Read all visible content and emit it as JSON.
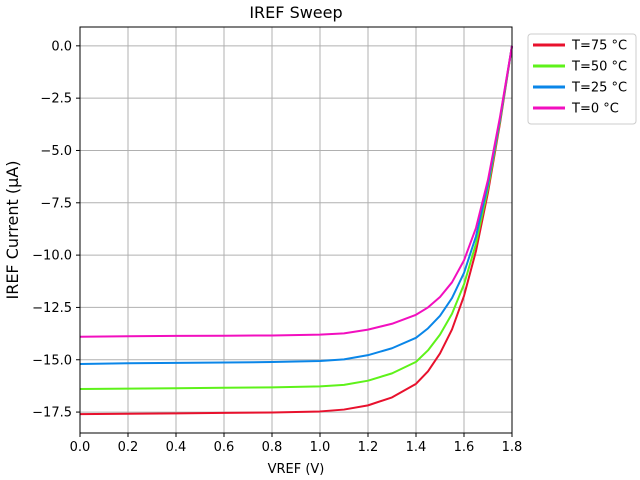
{
  "chart_data": {
    "type": "line",
    "title": "IREF Sweep",
    "xlabel": "VREF (V)",
    "ylabel": "IREF Current (µA)",
    "xlim": [
      0.0,
      1.8
    ],
    "ylim": [
      -18.5,
      0.9
    ],
    "xticks": [
      0.0,
      0.2,
      0.4,
      0.6,
      0.8,
      1.0,
      1.2,
      1.4,
      1.6,
      1.8
    ],
    "xtick_labels": [
      "0.0",
      "0.2",
      "0.4",
      "0.6",
      "0.8",
      "1.0",
      "1.2",
      "1.4",
      "1.6",
      "1.8"
    ],
    "yticks": [
      0.0,
      -2.5,
      -5.0,
      -7.5,
      -10.0,
      -12.5,
      -15.0,
      -17.5
    ],
    "ytick_labels": [
      "0.0",
      "−2.5",
      "−5.0",
      "−7.5",
      "−10.0",
      "−12.5",
      "−15.0",
      "−17.5"
    ],
    "grid": true,
    "legend_position": "outside-top-right",
    "x": [
      0.0,
      0.2,
      0.4,
      0.6,
      0.8,
      1.0,
      1.1,
      1.2,
      1.3,
      1.4,
      1.45,
      1.5,
      1.55,
      1.6,
      1.65,
      1.7,
      1.75,
      1.8
    ],
    "series": [
      {
        "name": "T=75 °C",
        "color": "#e8112d",
        "values": [
          -17.6,
          -17.58,
          -17.56,
          -17.54,
          -17.52,
          -17.47,
          -17.38,
          -17.18,
          -16.8,
          -16.15,
          -15.55,
          -14.7,
          -13.55,
          -11.95,
          -9.8,
          -7.0,
          -3.7,
          0.0
        ]
      },
      {
        "name": "T=50 °C",
        "color": "#5ef21a",
        "values": [
          -16.4,
          -16.38,
          -16.36,
          -16.34,
          -16.32,
          -16.27,
          -16.2,
          -16.0,
          -15.65,
          -15.1,
          -14.55,
          -13.8,
          -12.8,
          -11.4,
          -9.45,
          -6.8,
          -3.6,
          0.0
        ]
      },
      {
        "name": "T=25 °C",
        "color": "#0a86e8",
        "values": [
          -15.2,
          -15.17,
          -15.15,
          -15.13,
          -15.11,
          -15.06,
          -14.98,
          -14.78,
          -14.45,
          -13.95,
          -13.5,
          -12.9,
          -12.05,
          -10.85,
          -9.1,
          -6.6,
          -3.5,
          0.0
        ]
      },
      {
        "name": "T=0 °C",
        "color": "#f20fbf",
        "values": [
          -13.9,
          -13.88,
          -13.86,
          -13.85,
          -13.84,
          -13.8,
          -13.74,
          -13.56,
          -13.28,
          -12.85,
          -12.5,
          -12.0,
          -11.3,
          -10.25,
          -8.7,
          -6.4,
          -3.4,
          0.0
        ]
      }
    ]
  }
}
